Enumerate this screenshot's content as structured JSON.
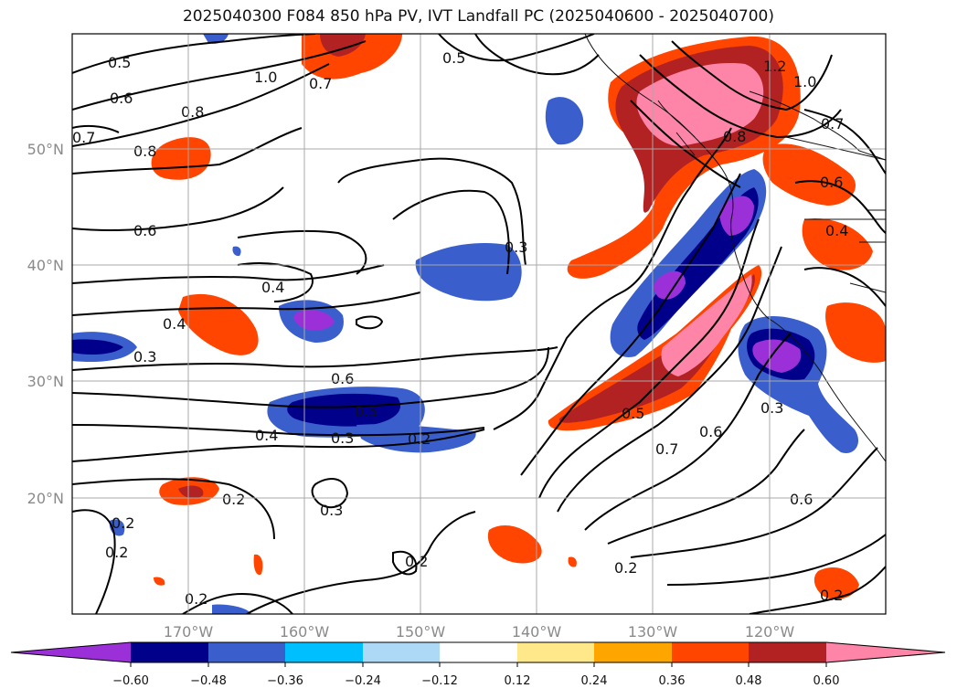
{
  "title": "2025040300 F084 850 hPa PV, IVT Landfall PC (2025040600 - 2025040700)",
  "map": {
    "lon_labels": [
      "170°W",
      "160°W",
      "150°W",
      "140°W",
      "130°W",
      "120°W"
    ],
    "lat_labels": [
      "50°N",
      "40°N",
      "30°N",
      "20°N"
    ],
    "contour_labels": [
      "0.5",
      "1.0",
      "0.7",
      "0.5",
      "0.6",
      "0.8",
      "0.7",
      "0.8",
      "1.2",
      "1.0",
      "0.7",
      "0.8",
      "0.6",
      "0.6",
      "0.4",
      "0.3",
      "0.4",
      "0.4",
      "0.3",
      "0.6",
      "0.5",
      "0.4",
      "0.3",
      "0.2",
      "0.5",
      "0.7",
      "0.6",
      "0.3",
      "0.2",
      "0.3",
      "0.2",
      "0.2",
      "0.2",
      "0.2",
      "0.2",
      "0.6",
      "0.2"
    ],
    "shading_colors": {
      "lt_neg_060": "#9b30d9",
      "neg_060_048": "#00008b",
      "neg_048_036": "#3a5fcd",
      "neg_036_024": "#00bfff",
      "neg_024_012": "#add8f6",
      "neg_012_012": "#ffffff",
      "pos_012_024": "#ffe88a",
      "pos_024_036": "#ffa500",
      "pos_036_048": "#ff4500",
      "pos_048_060": "#b22222",
      "gt_060": "#ff85a8"
    }
  },
  "colorbar": {
    "ticks": [
      "−0.60",
      "−0.48",
      "−0.36",
      "−0.24",
      "−0.12",
      "0.12",
      "0.24",
      "0.36",
      "0.48",
      "0.60"
    ],
    "colors": [
      "#9b30d9",
      "#00008b",
      "#3a5fcd",
      "#00bfff",
      "#add8f6",
      "#ffffff",
      "#ffe88a",
      "#ffa500",
      "#ff4500",
      "#b22222",
      "#ff85a8"
    ]
  }
}
